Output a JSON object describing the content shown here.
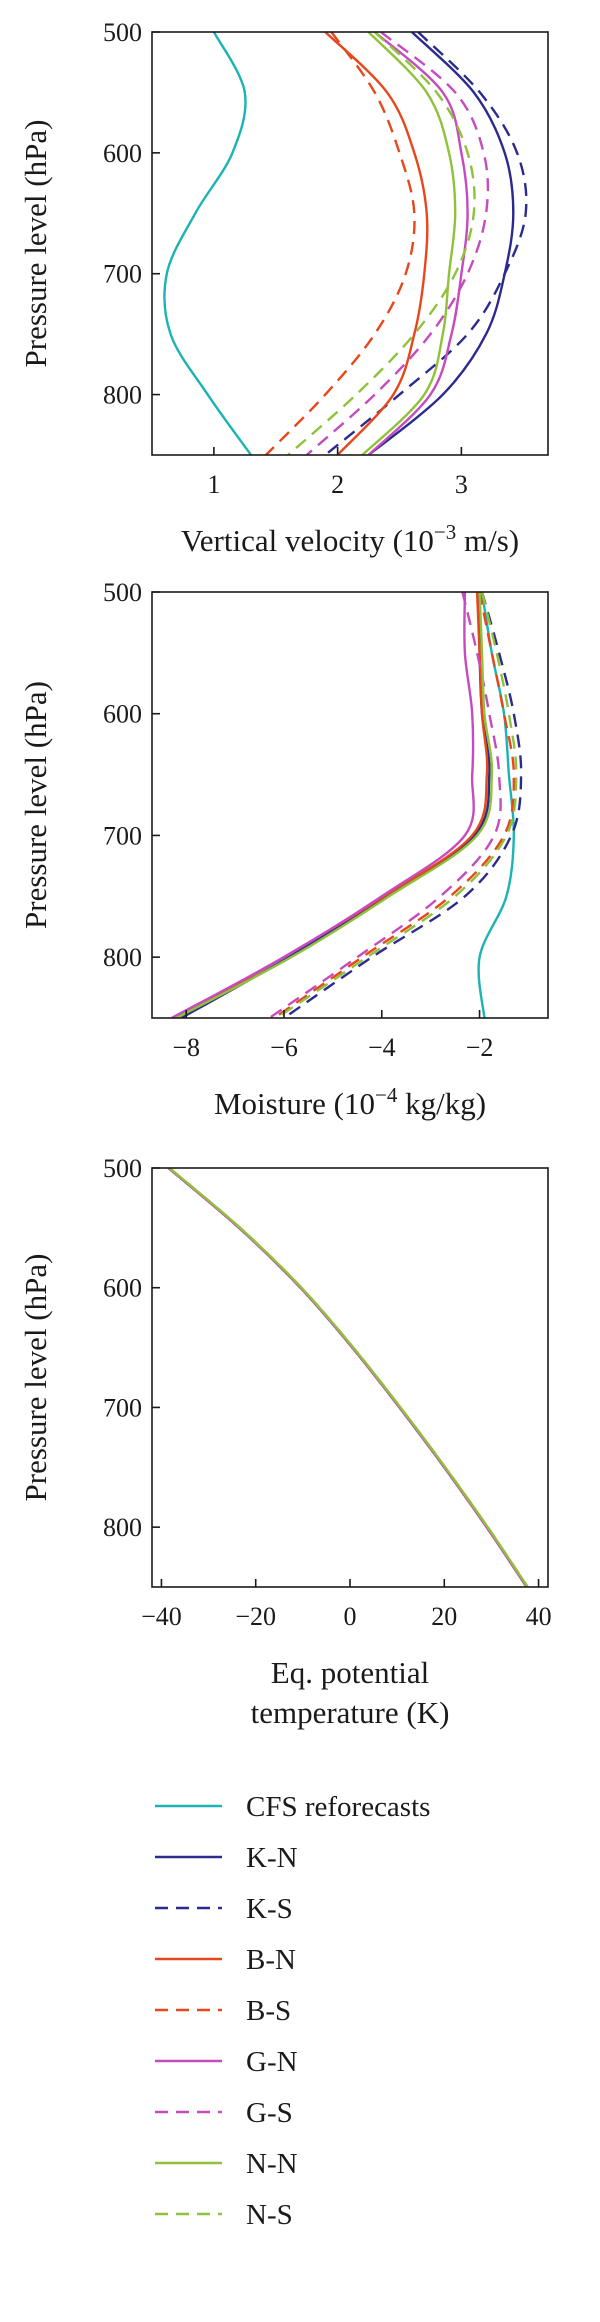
{
  "colors": {
    "CFS reforecasts": "#1bb3b3",
    "K-N": "#2b2b8f",
    "K-S": "#2b2b8f",
    "B-N": "#e8461b",
    "B-S": "#e8461b",
    "G-N": "#c54bbf",
    "G-S": "#c54bbf",
    "N-N": "#8fc23a",
    "N-S": "#8fc23a"
  },
  "legend": {
    "items": [
      {
        "label": "CFS reforecasts",
        "color": "#1bb3b3",
        "dash": "solid"
      },
      {
        "label": "K-N",
        "color": "#2b2b8f",
        "dash": "solid"
      },
      {
        "label": "K-S",
        "color": "#2b2b8f",
        "dash": "dashed"
      },
      {
        "label": "B-N",
        "color": "#e8461b",
        "dash": "solid"
      },
      {
        "label": "B-S",
        "color": "#e8461b",
        "dash": "dashed"
      },
      {
        "label": "G-N",
        "color": "#c54bbf",
        "dash": "solid"
      },
      {
        "label": "G-S",
        "color": "#c54bbf",
        "dash": "dashed"
      },
      {
        "label": "N-N",
        "color": "#8fc23a",
        "dash": "solid"
      },
      {
        "label": "N-S",
        "color": "#8fc23a",
        "dash": "dashed"
      }
    ]
  },
  "chart_data": [
    {
      "type": "line",
      "title": "",
      "xlabel": "Vertical velocity (10⁻³ m/s)",
      "xlabel_parts": {
        "before": "Vertical velocity (10",
        "sup": "−3",
        "after": " m/s)"
      },
      "ylabel": "Pressure level (hPa)",
      "xlim": [
        0.5,
        3.7
      ],
      "ylim": [
        850,
        500
      ],
      "y_inverted": true,
      "xticks": [
        1,
        2,
        3
      ],
      "xtick_labels": [
        "1",
        "2",
        "3"
      ],
      "yticks": [
        500,
        600,
        700,
        800
      ],
      "ytick_labels": [
        "500",
        "600",
        "700",
        "800"
      ],
      "y": [
        500,
        550,
        600,
        650,
        700,
        750,
        800,
        850
      ],
      "series": [
        {
          "name": "CFS reforecasts",
          "values": [
            1.0,
            1.25,
            1.15,
            0.85,
            0.62,
            0.65,
            0.95,
            1.3
          ]
        },
        {
          "name": "K-N",
          "values": [
            2.6,
            3.1,
            3.35,
            3.42,
            3.35,
            3.2,
            2.85,
            2.25
          ]
        },
        {
          "name": "K-S",
          "values": [
            2.65,
            3.15,
            3.45,
            3.52,
            3.35,
            3.05,
            2.5,
            1.9
          ]
        },
        {
          "name": "B-N",
          "values": [
            1.9,
            2.4,
            2.62,
            2.72,
            2.7,
            2.62,
            2.45,
            2.0
          ]
        },
        {
          "name": "B-S",
          "values": [
            1.95,
            2.3,
            2.5,
            2.62,
            2.55,
            2.3,
            1.9,
            1.42
          ]
        },
        {
          "name": "G-N",
          "values": [
            2.3,
            2.85,
            3.0,
            3.05,
            3.0,
            2.92,
            2.75,
            2.25
          ]
        },
        {
          "name": "G-S",
          "values": [
            2.35,
            2.95,
            3.18,
            3.2,
            3.05,
            2.75,
            2.3,
            1.75
          ]
        },
        {
          "name": "N-N",
          "values": [
            2.25,
            2.72,
            2.9,
            2.95,
            2.9,
            2.85,
            2.7,
            2.2
          ]
        },
        {
          "name": "N-S",
          "values": [
            2.3,
            2.8,
            3.05,
            3.1,
            2.95,
            2.62,
            2.15,
            1.6
          ]
        }
      ]
    },
    {
      "type": "line",
      "title": "",
      "xlabel": "Moisture (10⁻⁴ kg/kg)",
      "xlabel_parts": {
        "before": "Moisture (10",
        "sup": "−4",
        "after": " kg/kg)"
      },
      "ylabel": "Pressure level (hPa)",
      "xlim": [
        -8.7,
        -0.6
      ],
      "ylim": [
        850,
        500
      ],
      "y_inverted": true,
      "xticks": [
        -8,
        -6,
        -4,
        -2
      ],
      "xtick_labels": [
        "−8",
        "−6",
        "−4",
        "−2"
      ],
      "yticks": [
        500,
        600,
        700,
        800
      ],
      "ytick_labels": [
        "500",
        "600",
        "700",
        "800"
      ],
      "y": [
        500,
        550,
        600,
        650,
        700,
        750,
        800,
        850
      ],
      "series": [
        {
          "name": "CFS reforecasts",
          "values": [
            -1.95,
            -1.75,
            -1.5,
            -1.4,
            -1.3,
            -1.45,
            -2.0,
            -1.9
          ]
        },
        {
          "name": "K-N",
          "values": [
            -2.0,
            -2.0,
            -1.95,
            -1.8,
            -2.1,
            -3.9,
            -5.9,
            -8.1
          ]
        },
        {
          "name": "K-S",
          "values": [
            -1.95,
            -1.6,
            -1.3,
            -1.15,
            -1.35,
            -2.3,
            -4.2,
            -6.0
          ]
        },
        {
          "name": "B-N",
          "values": [
            -2.05,
            -2.0,
            -1.95,
            -1.85,
            -2.15,
            -3.95,
            -6.0,
            -8.2
          ]
        },
        {
          "name": "B-S",
          "values": [
            -2.0,
            -1.75,
            -1.5,
            -1.3,
            -1.5,
            -2.6,
            -4.4,
            -6.2
          ]
        },
        {
          "name": "G-N",
          "values": [
            -2.3,
            -2.3,
            -2.15,
            -2.15,
            -2.3,
            -4.0,
            -6.0,
            -8.3
          ]
        },
        {
          "name": "G-S",
          "values": [
            -2.35,
            -2.05,
            -1.8,
            -1.6,
            -1.7,
            -2.8,
            -4.5,
            -6.3
          ]
        },
        {
          "name": "N-N",
          "values": [
            -2.0,
            -1.95,
            -1.9,
            -1.75,
            -2.05,
            -3.85,
            -5.85,
            -8.2
          ]
        },
        {
          "name": "N-S",
          "values": [
            -1.95,
            -1.65,
            -1.4,
            -1.25,
            -1.45,
            -2.5,
            -4.3,
            -6.15
          ]
        }
      ]
    },
    {
      "type": "line",
      "title": "",
      "xlabel": "Eq. potential temperature (K)",
      "xlabel_lines": [
        "Eq. potential",
        "temperature (K)"
      ],
      "ylabel": "Pressure level (hPa)",
      "xlim": [
        -42,
        42
      ],
      "ylim": [
        850,
        500
      ],
      "y_inverted": true,
      "xticks": [
        -40,
        -20,
        0,
        20,
        40
      ],
      "xtick_labels": [
        "−40",
        "−20",
        "0",
        "20",
        "40"
      ],
      "yticks": [
        500,
        600,
        700,
        800
      ],
      "ytick_labels": [
        "500",
        "600",
        "700",
        "800"
      ],
      "y": [
        500,
        550,
        600,
        650,
        700,
        750,
        800,
        850
      ],
      "series": [
        {
          "name": "CFS reforecasts",
          "values": [
            -38.5,
            -23.5,
            -10.5,
            0.5,
            10.5,
            20.0,
            29.0,
            37.5
          ]
        },
        {
          "name": "K-N",
          "values": [
            -38.5,
            -23.5,
            -10.5,
            0.5,
            10.5,
            20.0,
            29.0,
            37.5
          ]
        },
        {
          "name": "K-S",
          "values": [
            -38.5,
            -23.5,
            -10.5,
            0.5,
            10.5,
            20.0,
            29.0,
            37.5
          ]
        },
        {
          "name": "B-N",
          "values": [
            -38.5,
            -23.5,
            -10.5,
            0.5,
            10.5,
            20.0,
            29.0,
            37.5
          ]
        },
        {
          "name": "B-S",
          "values": [
            -38.5,
            -23.5,
            -10.5,
            0.5,
            10.5,
            20.0,
            29.0,
            37.5
          ]
        },
        {
          "name": "G-N",
          "values": [
            -38.5,
            -23.5,
            -10.5,
            0.5,
            10.5,
            20.0,
            29.0,
            37.5
          ]
        },
        {
          "name": "G-S",
          "values": [
            -38.5,
            -23.5,
            -10.5,
            0.5,
            10.5,
            20.0,
            29.0,
            37.5
          ]
        },
        {
          "name": "N-N",
          "values": [
            -38.3,
            -23.3,
            -10.3,
            0.7,
            10.7,
            20.2,
            29.2,
            37.7
          ]
        },
        {
          "name": "N-S",
          "values": [
            -38.3,
            -23.3,
            -10.3,
            0.7,
            10.7,
            20.2,
            29.2,
            37.7
          ]
        }
      ]
    }
  ]
}
